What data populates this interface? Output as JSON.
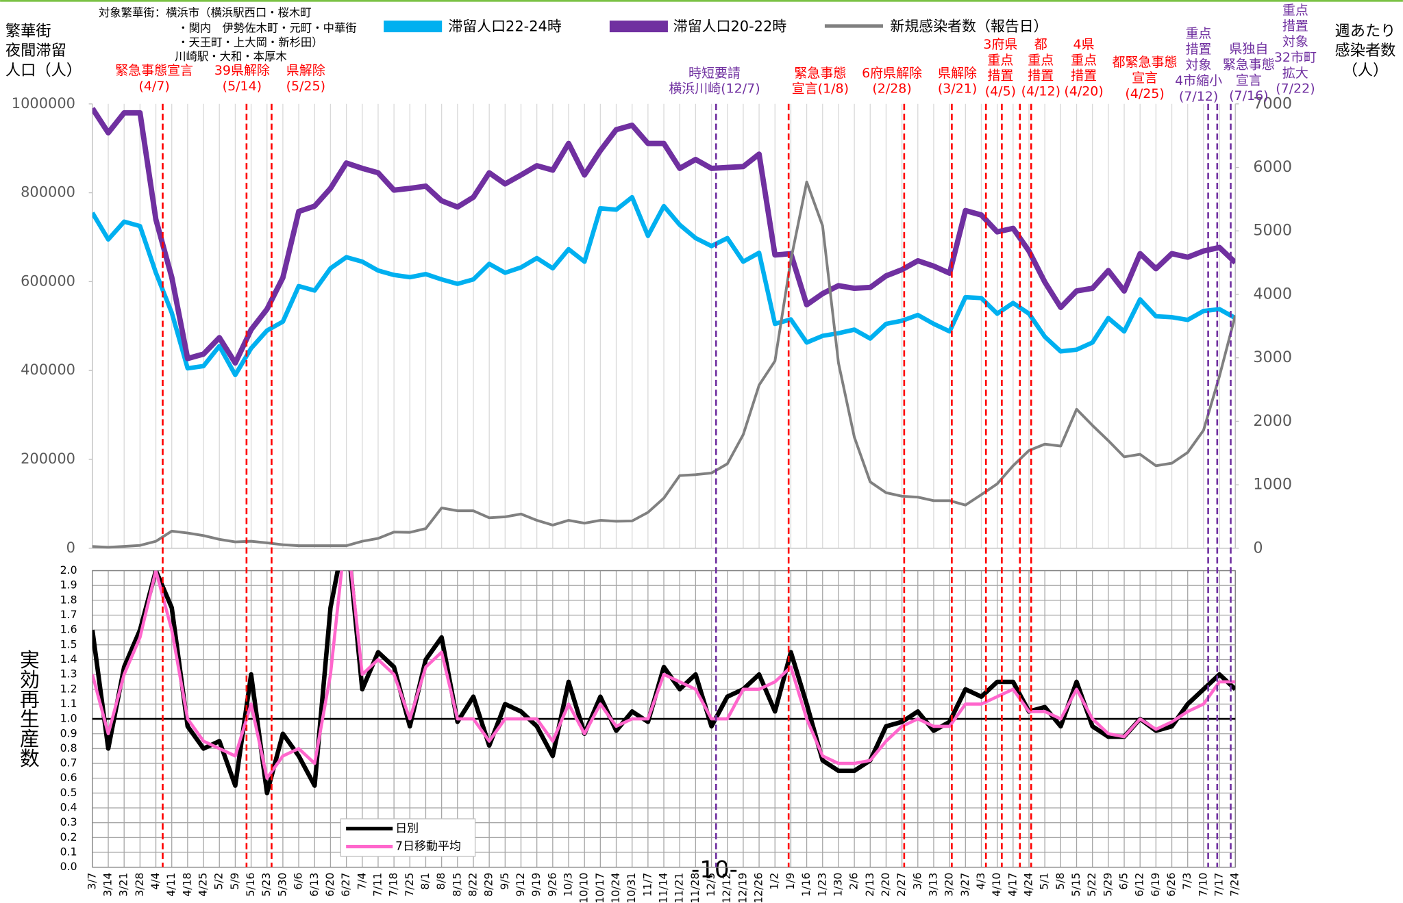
{
  "chart_data": [
    {
      "type": "line",
      "subtitle": [
        "対象繁華街：横浜市（横浜駅西口・桜木町",
        "・関内　伊勢佐木町・元町・中華街",
        "・天王町・上大岡・新杉田）",
        "川崎駅・大和・本厚木"
      ],
      "y_label": [
        "繁華街",
        "夜間滞留",
        "人口（人）"
      ],
      "y2_label": [
        "週あたり",
        "感染者数",
        "（人）"
      ],
      "ylim": [
        0,
        1000000
      ],
      "yticks": [
        0,
        200000,
        400000,
        600000,
        800000,
        1000000
      ],
      "y2lim": [
        0,
        7000
      ],
      "y2ticks": [
        0,
        1000,
        2000,
        3000,
        4000,
        5000,
        6000,
        7000
      ],
      "grid": true,
      "series": [
        {
          "name": "滞留人口22-24時",
          "color": "#00b0f0",
          "values": [
            755000,
            695000,
            735000,
            725000,
            620000,
            530000,
            405000,
            410000,
            455000,
            390000,
            450000,
            490000,
            510000,
            590000,
            580000,
            630000,
            655000,
            645000,
            625000,
            615000,
            610000,
            617000,
            605000,
            595000,
            605000,
            640000,
            620000,
            632000,
            653000,
            630000,
            673000,
            645000,
            765000,
            762000,
            790000,
            703000,
            770000,
            728000,
            698000,
            680000,
            698000,
            645000,
            665000,
            505000,
            515000,
            463000,
            478000,
            484000,
            492000,
            472000,
            505000,
            512000,
            525000,
            505000,
            488000,
            565000,
            563000,
            528000,
            552000,
            528000,
            476000,
            443000,
            447000,
            463000,
            518000,
            488000,
            560000,
            522000,
            520000,
            514000,
            534000,
            538000,
            518000
          ]
        },
        {
          "name": "滞留人口20-22時",
          "color": "#7030a0",
          "values": [
            990000,
            935000,
            980000,
            980000,
            740000,
            610000,
            427000,
            437000,
            474000,
            417000,
            492000,
            538000,
            609000,
            758000,
            770000,
            810000,
            867000,
            855000,
            845000,
            806000,
            810000,
            815000,
            782000,
            768000,
            790000,
            845000,
            820000,
            840000,
            861000,
            851000,
            911000,
            840000,
            895000,
            942000,
            952000,
            911000,
            911000,
            855000,
            875000,
            855000,
            857000,
            859000,
            887000,
            660000,
            663000,
            548000,
            573000,
            591000,
            585000,
            587000,
            613000,
            627000,
            647000,
            635000,
            619000,
            760000,
            750000,
            712000,
            720000,
            669000,
            599000,
            542000,
            579000,
            585000,
            625000,
            579000,
            663000,
            629000,
            663000,
            655000,
            669000,
            677000,
            643000
          ]
        },
        {
          "name": "新規感染者数（報告日）",
          "color": "#808080",
          "axis": "y2",
          "values": [
            28,
            15,
            30,
            45,
            110,
            270,
            240,
            200,
            140,
            100,
            110,
            85,
            55,
            40,
            40,
            40,
            40,
            110,
            155,
            255,
            250,
            310,
            635,
            590,
            590,
            480,
            495,
            540,
            440,
            365,
            440,
            395,
            440,
            425,
            430,
            565,
            790,
            1145,
            1160,
            1185,
            1330,
            1790,
            2570,
            2950,
            4540,
            5770,
            5080,
            2920,
            1750,
            1045,
            875,
            820,
            805,
            750,
            750,
            680,
            845,
            1015,
            1300,
            1540,
            1640,
            1610,
            2190,
            1935,
            1695,
            1440,
            1480,
            1300,
            1340,
            1510,
            1860,
            2710,
            3670
          ]
        }
      ]
    },
    {
      "type": "line",
      "y_label": "実効再生産数",
      "categories": [
        "3/7",
        "3/14",
        "3/21",
        "3/28",
        "4/4",
        "4/11",
        "4/18",
        "4/25",
        "5/2",
        "5/9",
        "5/16",
        "5/23",
        "5/30",
        "6/6",
        "6/13",
        "6/20",
        "6/27",
        "7/4",
        "7/11",
        "7/18",
        "7/25",
        "8/1",
        "8/8",
        "8/15",
        "8/22",
        "8/29",
        "9/5",
        "9/12",
        "9/19",
        "9/26",
        "10/3",
        "10/10",
        "10/17",
        "10/24",
        "10/31",
        "11/7",
        "11/14",
        "11/21",
        "11/28",
        "12/5",
        "12/12",
        "12/19",
        "12/26",
        "1/2",
        "1/9",
        "1/16",
        "1/23",
        "1/30",
        "2/6",
        "2/13",
        "2/20",
        "2/27",
        "3/6",
        "3/13",
        "3/20",
        "3/27",
        "4/3",
        "4/10",
        "4/17",
        "4/24",
        "5/1",
        "5/8",
        "5/15",
        "5/22",
        "5/29",
        "6/5",
        "6/12",
        "6/19",
        "6/26",
        "7/3",
        "7/10",
        "7/17",
        "7/24"
      ],
      "ylim": [
        0,
        2
      ],
      "yticks": [
        {
          "value": 0,
          "label": "0.0"
        },
        0.1,
        0.2,
        0.3,
        0.4,
        0.5,
        0.6,
        0.7,
        0.8,
        0.9,
        {
          "value": 1,
          "label": "1.0"
        },
        1.1,
        1.2,
        1.3,
        1.4,
        1.5,
        1.6,
        1.7,
        1.8,
        1.9,
        {
          "value": 2,
          "label": "2.0"
        }
      ],
      "reference_line": 1,
      "grid": true,
      "series": [
        {
          "name": "日別",
          "color": "#000000",
          "values": [
            1.6,
            0.8,
            1.35,
            1.6,
            2.0,
            1.75,
            0.95,
            0.8,
            0.85,
            0.55,
            1.3,
            0.5,
            0.9,
            0.75,
            0.55,
            1.75,
            2.3,
            1.2,
            1.45,
            1.35,
            0.95,
            1.4,
            1.55,
            0.98,
            1.15,
            0.82,
            1.1,
            1.05,
            0.95,
            0.75,
            1.25,
            0.9,
            1.15,
            0.92,
            1.05,
            0.98,
            1.35,
            1.2,
            1.3,
            0.95,
            1.15,
            1.2,
            1.3,
            1.05,
            1.45,
            1.1,
            0.72,
            0.65,
            0.65,
            0.72,
            0.95,
            0.98,
            1.05,
            0.92,
            0.98,
            1.2,
            1.15,
            1.25,
            1.25,
            1.05,
            1.08,
            0.95,
            1.25,
            0.95,
            0.88,
            0.88,
            1.0,
            0.92,
            0.95,
            1.1,
            1.2,
            1.3,
            1.2
          ]
        },
        {
          "name": "7日移動平均",
          "color": "#ff66cc",
          "values": [
            1.3,
            0.9,
            1.3,
            1.55,
            2.0,
            1.6,
            1.0,
            0.85,
            0.8,
            0.75,
            1.1,
            0.6,
            0.75,
            0.8,
            0.7,
            1.3,
            2.3,
            1.3,
            1.4,
            1.3,
            1.0,
            1.35,
            1.45,
            1.0,
            1.0,
            0.85,
            1.0,
            1.0,
            1.0,
            0.85,
            1.1,
            0.9,
            1.1,
            0.95,
            1.0,
            1.0,
            1.3,
            1.25,
            1.2,
            1.0,
            1.0,
            1.2,
            1.2,
            1.25,
            1.35,
            1.0,
            0.75,
            0.7,
            0.7,
            0.72,
            0.85,
            0.95,
            1.0,
            0.95,
            0.95,
            1.1,
            1.1,
            1.15,
            1.2,
            1.05,
            1.05,
            1.0,
            1.2,
            1.0,
            0.9,
            0.88,
            1.0,
            0.93,
            0.98,
            1.05,
            1.1,
            1.25,
            1.25
          ]
        }
      ]
    }
  ],
  "events": [
    {
      "label": [
        "緊急事態宣言",
        "(4/7)"
      ],
      "x": 4.43,
      "color": "#ff0000"
    },
    {
      "label": [
        "39県解除",
        "(5/14)"
      ],
      "x": 9.71,
      "color": "#ff0000"
    },
    {
      "label": [
        "県解除",
        "(5/25)"
      ],
      "x": 11.29,
      "color": "#ff0000"
    },
    {
      "label": [
        "時短要請",
        "横浜川崎(12/7)"
      ],
      "x": 39.29,
      "color": "#7030a0"
    },
    {
      "label": [
        "緊急事態",
        "宣言(1/8)"
      ],
      "x": 43.86,
      "color": "#ff0000"
    },
    {
      "label": [
        "6府県解除",
        "(2/28)"
      ],
      "x": 51.14,
      "color": "#ff0000"
    },
    {
      "label": [
        "県解除",
        "(3/21)"
      ],
      "x": 54.14,
      "color": "#ff0000"
    },
    {
      "label": [
        "3府県",
        "重点",
        "措置",
        "(4/5)"
      ],
      "x": 56.29,
      "color": "#ff0000"
    },
    {
      "label": [
        "都",
        "重点",
        "措置",
        "(4/12)"
      ],
      "x": 57.29,
      "color": "#ff0000"
    },
    {
      "label": [
        "4県",
        "重点",
        "措置",
        "(4/20)"
      ],
      "x": 58.43,
      "color": "#ff0000"
    },
    {
      "label": [
        "都緊急事態",
        "宣言",
        "(4/25)"
      ],
      "x": 59.14,
      "color": "#ff0000"
    },
    {
      "label": [
        "重点",
        "措置",
        "対象",
        "4市縮小",
        "(7/12)"
      ],
      "x": 70.29,
      "color": "#7030a0"
    },
    {
      "label": [
        "県独自",
        "緊急事態",
        "宣言",
        "(7/16)"
      ],
      "x": 70.86,
      "color": "#7030a0"
    },
    {
      "label": [
        "重点",
        "措置",
        "対象",
        "32市町",
        "拡大",
        "(7/22)"
      ],
      "x": 71.71,
      "color": "#7030a0"
    }
  ],
  "page_number": "-10-"
}
